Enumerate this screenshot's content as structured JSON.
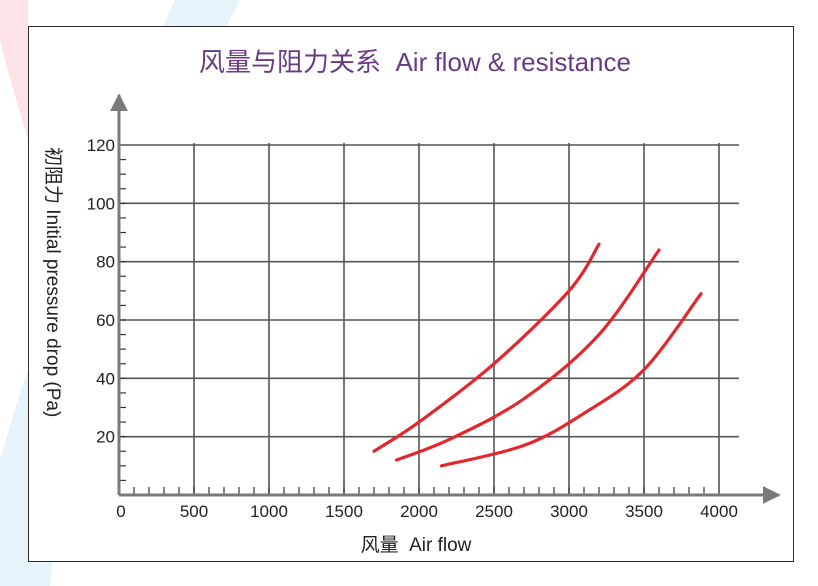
{
  "chart_data": {
    "type": "line",
    "title": "风量与阻力关系  Air flow & resistance",
    "xlabel": "风量  Air flow",
    "ylabel": "初阻力 Initial pressure drop (Pa)",
    "xlim": [
      0,
      4000
    ],
    "ylim": [
      0,
      120
    ],
    "x_ticks": [
      "0",
      "500",
      "1000",
      "1500",
      "2000",
      "2500",
      "3000",
      "3500",
      "4000"
    ],
    "y_ticks": [
      "20",
      "40",
      "60",
      "80",
      "100",
      "120"
    ],
    "grid": true,
    "line_color": "#e0282e",
    "series": [
      {
        "x": [
          1700,
          2000,
          2500,
          3000,
          3200
        ],
        "y": [
          15,
          25,
          45,
          70,
          86
        ]
      },
      {
        "x": [
          1850,
          2200,
          2700,
          3200,
          3600
        ],
        "y": [
          12,
          19,
          33,
          55,
          84
        ]
      },
      {
        "x": [
          2150,
          2700,
          3100,
          3500,
          3880
        ],
        "y": [
          10,
          17,
          28,
          43,
          69
        ]
      }
    ]
  }
}
